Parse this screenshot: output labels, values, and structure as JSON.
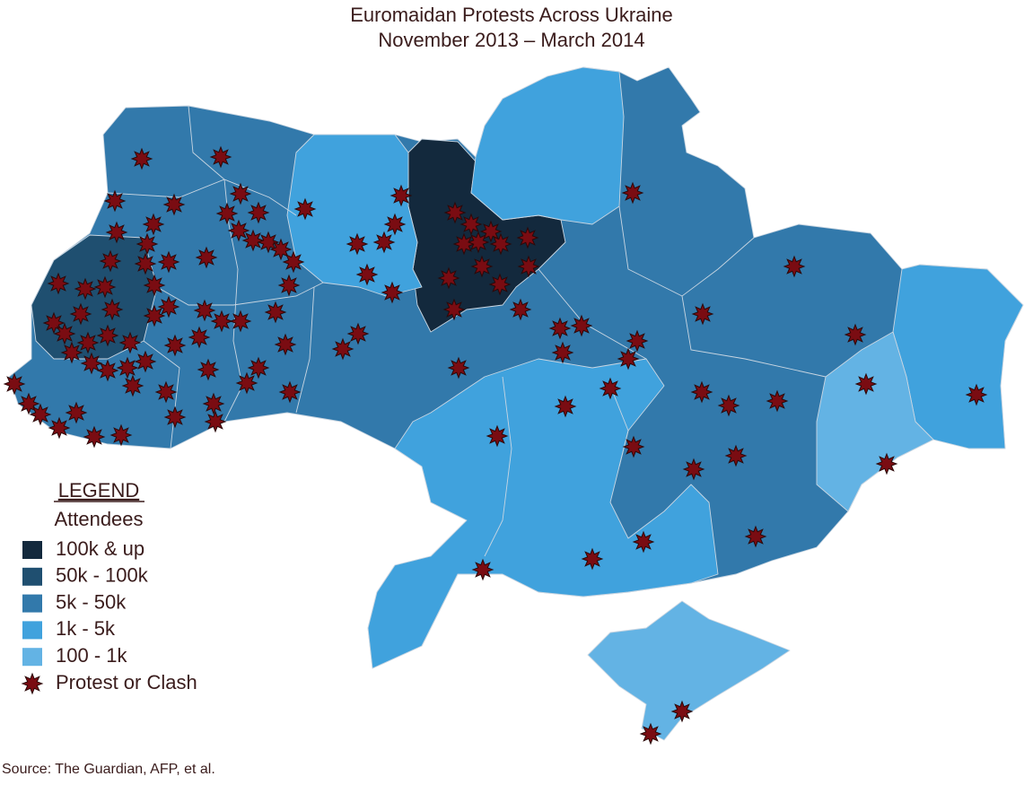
{
  "header": {
    "title": "Euromaidan Protests Across Ukraine",
    "subtitle": "November 2013 – March 2014"
  },
  "legend": {
    "heading": "LEGEND",
    "title": "Attendees",
    "items": [
      {
        "label": "100k & up",
        "color": "#13293d"
      },
      {
        "label": "50k - 100k",
        "color": "#1f4f70"
      },
      {
        "label": "5k - 50k",
        "color": "#3279ab"
      },
      {
        "label": "1k - 5k",
        "color": "#40a2dd"
      },
      {
        "label": "100 - 1k",
        "color": "#63b3e4"
      }
    ],
    "marker_label": "Protest or Clash"
  },
  "source": "Source: The Guardian, AFP, et al."
}
